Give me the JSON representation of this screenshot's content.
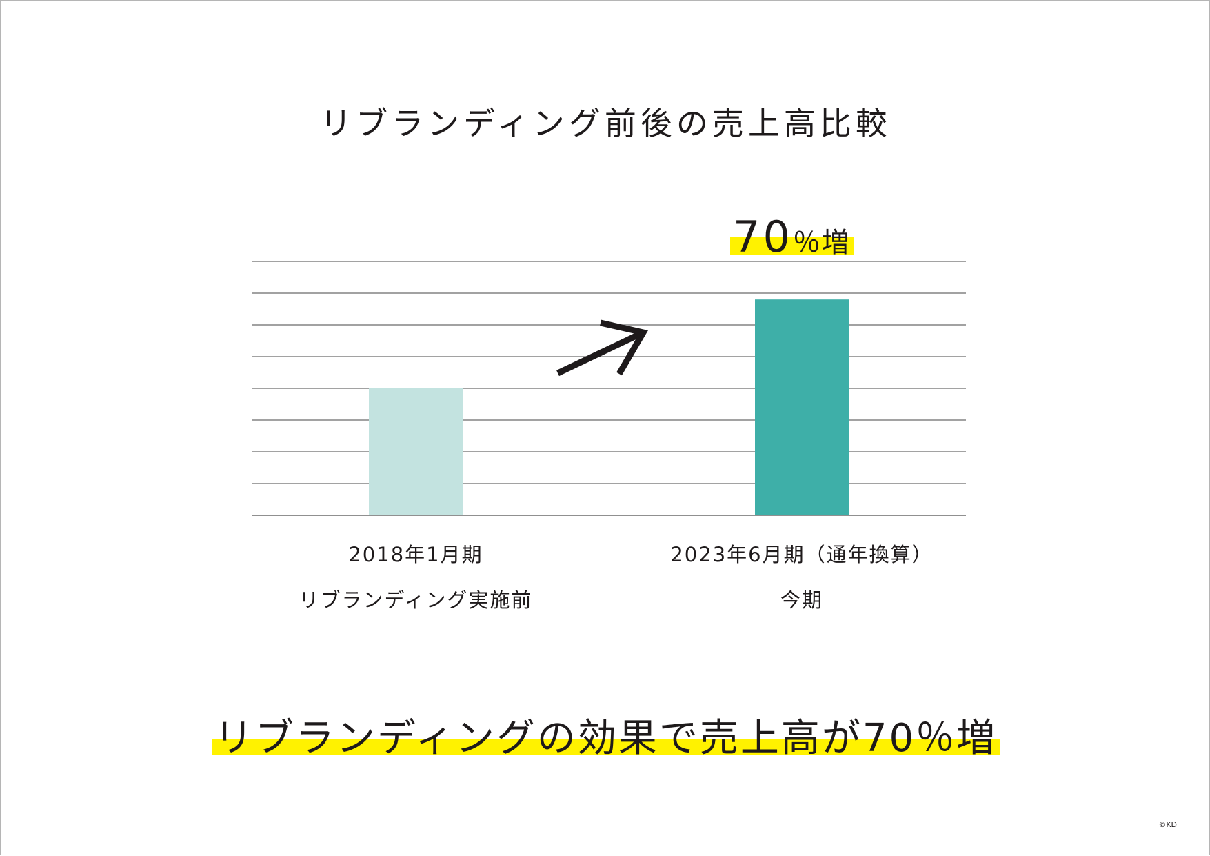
{
  "title": "リブランディング前後の売上高比較",
  "chart_data": {
    "type": "bar",
    "categories": [
      [
        "2018年1月期",
        "リブランディング実施前"
      ],
      [
        "2023年6月期（通年換算）",
        "今期"
      ]
    ],
    "values": [
      100,
      170
    ],
    "ylim": [
      0,
      200
    ],
    "grid": true,
    "bar_colors": [
      "#c3e3e0",
      "#3eafa8"
    ],
    "annotation": {
      "number": "70",
      "suffix": "％増",
      "highlight_color": "#fff200"
    }
  },
  "headline": "リブランディングの効果で売上高が70％増",
  "copyright": "©KD",
  "colors": {
    "text": "#1e1a1b",
    "grid": "#6b6b6b",
    "highlight": "#fff200"
  }
}
